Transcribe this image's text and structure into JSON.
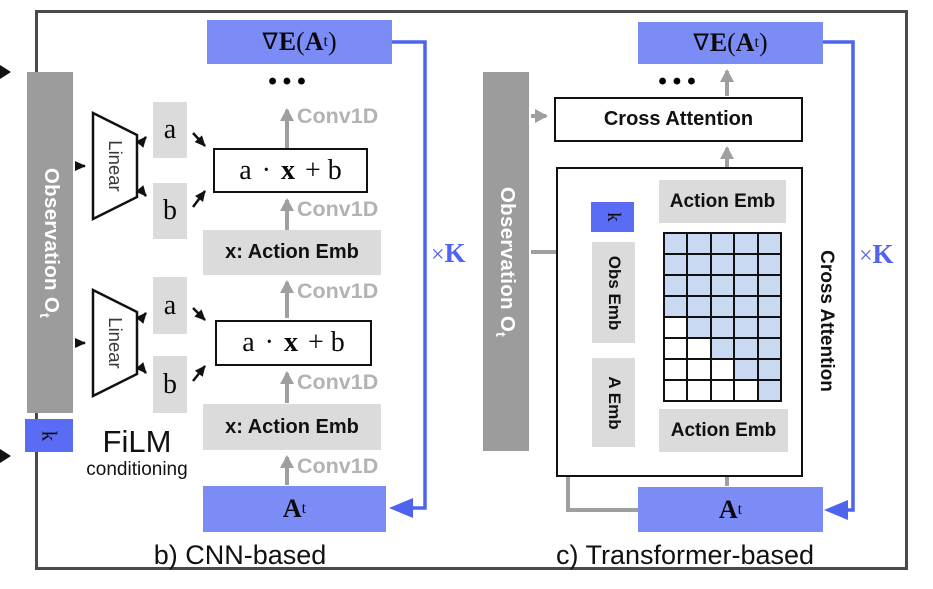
{
  "colors": {
    "box_blue": "#7b8cf7",
    "k_blue": "#5a6cf3",
    "mask_cell_blue": "#c9d9f2",
    "mask_cell_white": "#ffffff",
    "light_gray_box": "#dbdbdb",
    "observation_bar_gray": "#9c9c9c",
    "arrow_gray": "#9f9f9f",
    "conv1d_label_gray": "#b3b3b3",
    "feedback_blue": "#4e64ef",
    "frame_border": "#4a4a4a"
  },
  "panel_b": {
    "caption": "b) CNN-based",
    "observation": {
      "text": "Observation O",
      "sub": "t"
    },
    "k_label": "k",
    "film": {
      "title": "FiLM",
      "subtitle": "conditioning"
    },
    "blocks": [
      {
        "linear": "Linear",
        "a": "a",
        "b": "b",
        "equation": {
          "a": "a",
          "dot": "·",
          "x": "x",
          "rest": "+ b"
        }
      },
      {
        "linear": "Linear",
        "a": "a",
        "b": "b",
        "equation": {
          "a": "a",
          "dot": "·",
          "x": "x",
          "rest": "+ b"
        }
      }
    ],
    "action_emb_labels": [
      "x: Action Emb",
      "x: Action Emb"
    ],
    "conv1d_labels": [
      "Conv1D",
      "Conv1D",
      "Conv1D",
      "Conv1D",
      "Conv1D"
    ],
    "ellipsis": "•••",
    "gradient_box": {
      "nabla": "∇",
      "E": "E",
      "open": "(",
      "A": "A",
      "sub": "t",
      "close": ")"
    },
    "action_box": {
      "A": "A",
      "sub": "t"
    },
    "loop_label": {
      "times": "×",
      "k": "K"
    }
  },
  "panel_c": {
    "caption": "c) Transformer-based",
    "observation": {
      "text": "Observation O",
      "sub": "t"
    },
    "cross_attention_label": "Cross Attention",
    "cross_attention_side_label": "Cross Attention",
    "action_emb_top": "Action Emb",
    "action_emb_bottom": "Action Emb",
    "k_label": "k",
    "obs_emb_label": "Obs Emb",
    "a_emb_label": "A Emb",
    "ellipsis": "•••",
    "gradient_box": {
      "nabla": "∇",
      "E": "E",
      "open": "(",
      "A": "A",
      "sub": "t",
      "close": ")"
    },
    "action_box": {
      "A": "A",
      "sub": "t"
    },
    "loop_label": {
      "times": "×",
      "k": "K"
    },
    "attention_mask": {
      "rows": 8,
      "cols": 5,
      "cells": [
        [
          1,
          1,
          1,
          1,
          1
        ],
        [
          1,
          1,
          1,
          1,
          1
        ],
        [
          1,
          1,
          1,
          1,
          1
        ],
        [
          1,
          1,
          1,
          1,
          1
        ],
        [
          0,
          1,
          1,
          1,
          1
        ],
        [
          0,
          0,
          1,
          1,
          1
        ],
        [
          0,
          0,
          0,
          1,
          1
        ],
        [
          0,
          0,
          0,
          0,
          1
        ]
      ]
    }
  }
}
